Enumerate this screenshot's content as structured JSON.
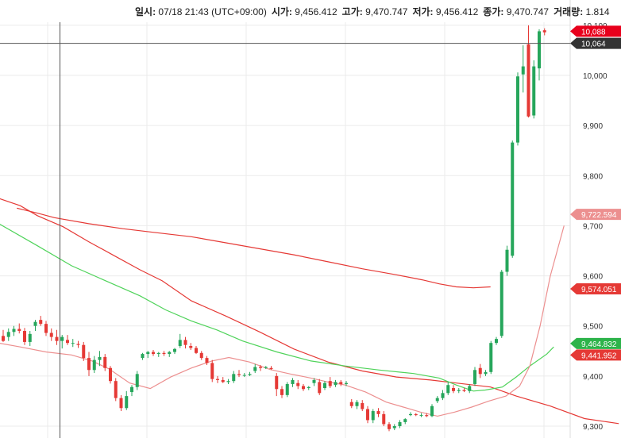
{
  "info": [
    {
      "label": "일시:",
      "value": "07/18 21:43 (UTC+09:00)"
    },
    {
      "label": "시가:",
      "value": "9,456.412"
    },
    {
      "label": "고가:",
      "value": "9,470.747"
    },
    {
      "label": "저가:",
      "value": "9,456.412"
    },
    {
      "label": "종가:",
      "value": "9,470.747"
    },
    {
      "label": "거래량:",
      "value": "1.814"
    }
  ],
  "colors": {
    "up": "#26a65b",
    "down": "#e53935",
    "ma_slow": "#e53935",
    "ma_mid": "#ec8f8f",
    "ma_fast": "#4fd35a",
    "grid": "#ebebeb",
    "crosshair": "#555555"
  },
  "chart_data": {
    "type": "candlestick",
    "ylim": [
      9290,
      10110
    ],
    "y_ticks": [
      "9,300",
      "9,400",
      "9,500",
      "9,600",
      "9,700",
      "9,800",
      "9,900",
      "10,000",
      "10,100"
    ],
    "candles": [
      {
        "o": 9480,
        "h": 9492,
        "l": 9468,
        "c": 9470
      },
      {
        "o": 9478,
        "h": 9495,
        "l": 9470,
        "c": 9488
      },
      {
        "o": 9488,
        "h": 9500,
        "l": 9480,
        "c": 9494
      },
      {
        "o": 9494,
        "h": 9505,
        "l": 9485,
        "c": 9490
      },
      {
        "o": 9490,
        "h": 9496,
        "l": 9462,
        "c": 9468
      },
      {
        "o": 9468,
        "h": 9490,
        "l": 9460,
        "c": 9484
      },
      {
        "o": 9500,
        "h": 9512,
        "l": 9490,
        "c": 9508
      },
      {
        "o": 9512,
        "h": 9520,
        "l": 9500,
        "c": 9504
      },
      {
        "o": 9504,
        "h": 9510,
        "l": 9480,
        "c": 9486
      },
      {
        "o": 9486,
        "h": 9495,
        "l": 9470,
        "c": 9478
      },
      {
        "o": 9478,
        "h": 9492,
        "l": 9462,
        "c": 9470
      },
      {
        "o": 9470,
        "h": 9482,
        "l": 9455,
        "c": 9478
      },
      {
        "o": 9472,
        "h": 9482,
        "l": 9462,
        "c": 9466
      },
      {
        "o": 9466,
        "h": 9474,
        "l": 9458,
        "c": 9466
      },
      {
        "o": 9464,
        "h": 9470,
        "l": 9456,
        "c": 9462
      },
      {
        "o": 9462,
        "h": 9468,
        "l": 9430,
        "c": 9436
      },
      {
        "o": 9436,
        "h": 9448,
        "l": 9400,
        "c": 9412
      },
      {
        "o": 9412,
        "h": 9440,
        "l": 9406,
        "c": 9432
      },
      {
        "o": 9432,
        "h": 9450,
        "l": 9420,
        "c": 9438
      },
      {
        "o": 9438,
        "h": 9444,
        "l": 9410,
        "c": 9416
      },
      {
        "o": 9416,
        "h": 9420,
        "l": 9385,
        "c": 9390
      },
      {
        "o": 9390,
        "h": 9396,
        "l": 9350,
        "c": 9356
      },
      {
        "o": 9356,
        "h": 9362,
        "l": 9330,
        "c": 9336
      },
      {
        "o": 9336,
        "h": 9370,
        "l": 9332,
        "c": 9360
      },
      {
        "o": 9368,
        "h": 9382,
        "l": 9360,
        "c": 9378
      },
      {
        "o": 9378,
        "h": 9410,
        "l": 9372,
        "c": 9404
      },
      {
        "o": 9436,
        "h": 9446,
        "l": 9432,
        "c": 9444
      },
      {
        "o": 9444,
        "h": 9450,
        "l": 9436,
        "c": 9448
      },
      {
        "o": 9448,
        "h": 9452,
        "l": 9440,
        "c": 9444
      },
      {
        "o": 9444,
        "h": 9448,
        "l": 9438,
        "c": 9446
      },
      {
        "o": 9446,
        "h": 9450,
        "l": 9440,
        "c": 9444
      },
      {
        "o": 9444,
        "h": 9450,
        "l": 9438,
        "c": 9448
      },
      {
        "o": 9448,
        "h": 9456,
        "l": 9444,
        "c": 9454
      },
      {
        "o": 9460,
        "h": 9484,
        "l": 9456,
        "c": 9472
      },
      {
        "o": 9472,
        "h": 9478,
        "l": 9455,
        "c": 9462
      },
      {
        "o": 9460,
        "h": 9466,
        "l": 9452,
        "c": 9456
      },
      {
        "o": 9456,
        "h": 9460,
        "l": 9444,
        "c": 9446
      },
      {
        "o": 9446,
        "h": 9450,
        "l": 9432,
        "c": 9436
      },
      {
        "o": 9436,
        "h": 9440,
        "l": 9422,
        "c": 9426
      },
      {
        "o": 9426,
        "h": 9432,
        "l": 9388,
        "c": 9394
      },
      {
        "o": 9394,
        "h": 9400,
        "l": 9386,
        "c": 9392
      },
      {
        "o": 9392,
        "h": 9398,
        "l": 9386,
        "c": 9388
      },
      {
        "o": 9388,
        "h": 9394,
        "l": 9384,
        "c": 9390
      },
      {
        "o": 9390,
        "h": 9410,
        "l": 9386,
        "c": 9404
      },
      {
        "o": 9404,
        "h": 9412,
        "l": 9398,
        "c": 9402
      },
      {
        "o": 9402,
        "h": 9406,
        "l": 9398,
        "c": 9402
      },
      {
        "o": 9402,
        "h": 9408,
        "l": 9400,
        "c": 9404
      },
      {
        "o": 9410,
        "h": 9424,
        "l": 9406,
        "c": 9418
      },
      {
        "o": 9418,
        "h": 9422,
        "l": 9410,
        "c": 9416
      },
      {
        "o": 9416,
        "h": 9420,
        "l": 9414,
        "c": 9418
      },
      {
        "o": 9416,
        "h": 9420,
        "l": 9412,
        "c": 9414
      },
      {
        "o": 9400,
        "h": 9406,
        "l": 9360,
        "c": 9374
      },
      {
        "o": 9374,
        "h": 9380,
        "l": 9356,
        "c": 9362
      },
      {
        "o": 9362,
        "h": 9388,
        "l": 9358,
        "c": 9384
      },
      {
        "o": 9384,
        "h": 9396,
        "l": 9378,
        "c": 9392
      },
      {
        "o": 9386,
        "h": 9392,
        "l": 9374,
        "c": 9380
      },
      {
        "o": 9380,
        "h": 9384,
        "l": 9370,
        "c": 9374
      },
      {
        "o": 9376,
        "h": 9380,
        "l": 9372,
        "c": 9378
      },
      {
        "o": 9386,
        "h": 9396,
        "l": 9380,
        "c": 9392
      },
      {
        "o": 9388,
        "h": 9394,
        "l": 9362,
        "c": 9366
      },
      {
        "o": 9376,
        "h": 9390,
        "l": 9372,
        "c": 9386
      },
      {
        "o": 9390,
        "h": 9398,
        "l": 9376,
        "c": 9380
      },
      {
        "o": 9382,
        "h": 9392,
        "l": 9378,
        "c": 9388
      },
      {
        "o": 9388,
        "h": 9392,
        "l": 9380,
        "c": 9384
      },
      {
        "o": 9384,
        "h": 9390,
        "l": 9380,
        "c": 9386
      },
      {
        "o": 9348,
        "h": 9354,
        "l": 9336,
        "c": 9340
      },
      {
        "o": 9340,
        "h": 9352,
        "l": 9334,
        "c": 9348
      },
      {
        "o": 9346,
        "h": 9352,
        "l": 9330,
        "c": 9334
      },
      {
        "o": 9334,
        "h": 9340,
        "l": 9306,
        "c": 9312
      },
      {
        "o": 9312,
        "h": 9334,
        "l": 9306,
        "c": 9330
      },
      {
        "o": 9330,
        "h": 9336,
        "l": 9318,
        "c": 9324
      },
      {
        "o": 9324,
        "h": 9330,
        "l": 9300,
        "c": 9304
      },
      {
        "o": 9304,
        "h": 9308,
        "l": 9290,
        "c": 9294
      },
      {
        "o": 9296,
        "h": 9304,
        "l": 9292,
        "c": 9300
      },
      {
        "o": 9300,
        "h": 9312,
        "l": 9296,
        "c": 9308
      },
      {
        "o": 9308,
        "h": 9316,
        "l": 9304,
        "c": 9314
      },
      {
        "o": 9322,
        "h": 9328,
        "l": 9320,
        "c": 9324
      },
      {
        "o": 9324,
        "h": 9326,
        "l": 9320,
        "c": 9322
      },
      {
        "o": 9322,
        "h": 9326,
        "l": 9318,
        "c": 9322
      },
      {
        "o": 9322,
        "h": 9326,
        "l": 9318,
        "c": 9320
      },
      {
        "o": 9320,
        "h": 9344,
        "l": 9318,
        "c": 9340
      },
      {
        "o": 9350,
        "h": 9360,
        "l": 9346,
        "c": 9356
      },
      {
        "o": 9356,
        "h": 9372,
        "l": 9352,
        "c": 9366
      },
      {
        "o": 9366,
        "h": 9388,
        "l": 9362,
        "c": 9382
      },
      {
        "o": 9376,
        "h": 9382,
        "l": 9366,
        "c": 9370
      },
      {
        "o": 9370,
        "h": 9376,
        "l": 9366,
        "c": 9372
      },
      {
        "o": 9372,
        "h": 9376,
        "l": 9368,
        "c": 9370
      },
      {
        "o": 9370,
        "h": 9384,
        "l": 9366,
        "c": 9380
      },
      {
        "o": 9384,
        "h": 9418,
        "l": 9380,
        "c": 9412
      },
      {
        "o": 9416,
        "h": 9424,
        "l": 9396,
        "c": 9404
      },
      {
        "o": 9404,
        "h": 9412,
        "l": 9400,
        "c": 9408
      },
      {
        "o": 9408,
        "h": 9470,
        "l": 9404,
        "c": 9466
      },
      {
        "o": 9466,
        "h": 9478,
        "l": 9462,
        "c": 9474
      },
      {
        "o": 9480,
        "h": 9612,
        "l": 9476,
        "c": 9608
      },
      {
        "o": 9608,
        "h": 9660,
        "l": 9600,
        "c": 9652
      },
      {
        "o": 9640,
        "h": 9870,
        "l": 9636,
        "c": 9866
      },
      {
        "o": 9866,
        "h": 10006,
        "l": 9860,
        "c": 9998
      },
      {
        "o": 10002,
        "h": 10060,
        "l": 9966,
        "c": 10018
      },
      {
        "o": 10062,
        "h": 10100,
        "l": 9916,
        "c": 9918
      },
      {
        "o": 9920,
        "h": 10030,
        "l": 9914,
        "c": 10018
      },
      {
        "o": 10014,
        "h": 10092,
        "l": 9990,
        "c": 10088
      },
      {
        "o": 10090,
        "h": 10094,
        "l": 10080,
        "c": 10086
      }
    ],
    "series": [
      {
        "points": [
          [
            -3,
            9755
          ],
          [
            10,
            9740
          ],
          [
            20,
            9720
          ],
          [
            35,
            9698
          ],
          [
            50,
            9668
          ],
          [
            65,
            9640
          ],
          [
            80,
            9612
          ],
          [
            93,
            9590
          ],
          [
            110,
            9550
          ],
          [
            130,
            9520
          ],
          [
            150,
            9488
          ],
          [
            170,
            9454
          ],
          [
            190,
            9428
          ],
          [
            210,
            9410
          ],
          [
            230,
            9398
          ],
          [
            250,
            9392
          ],
          [
            265,
            9386
          ],
          [
            285,
            9378
          ],
          [
            300,
            9360
          ],
          [
            320,
            9340
          ],
          [
            340,
            9315
          ],
          [
            360,
            9305
          ]
        ]
      },
      {
        "points": [
          [
            8,
            9735
          ],
          [
            20,
            9725
          ],
          [
            30,
            9716
          ],
          [
            50,
            9704
          ],
          [
            70,
            9694
          ],
          [
            90,
            9686
          ],
          [
            110,
            9678
          ],
          [
            130,
            9666
          ],
          [
            150,
            9654
          ],
          [
            170,
            9642
          ],
          [
            190,
            9628
          ],
          [
            210,
            9614
          ],
          [
            230,
            9602
          ],
          [
            245,
            9592
          ],
          [
            255,
            9584
          ],
          [
            265,
            9578
          ],
          [
            275,
            9576
          ],
          [
            285,
            9578
          ]
        ]
      },
      {
        "points": [
          [
            -3,
            9705
          ],
          [
            20,
            9660
          ],
          [
            40,
            9620
          ],
          [
            60,
            9590
          ],
          [
            80,
            9560
          ],
          [
            95,
            9532
          ],
          [
            110,
            9510
          ],
          [
            125,
            9492
          ],
          [
            140,
            9470
          ],
          [
            160,
            9448
          ],
          [
            180,
            9430
          ],
          [
            200,
            9420
          ],
          [
            220,
            9412
          ],
          [
            240,
            9405
          ],
          [
            255,
            9396
          ],
          [
            265,
            9382
          ],
          [
            275,
            9370
          ],
          [
            282,
            9372
          ],
          [
            292,
            9378
          ],
          [
            300,
            9398
          ],
          [
            308,
            9420
          ],
          [
            318,
            9444
          ],
          [
            322,
            9458
          ]
        ]
      },
      {
        "points": [
          [
            -3,
            9466
          ],
          [
            10,
            9458
          ],
          [
            25,
            9448
          ],
          [
            40,
            9442
          ],
          [
            52,
            9430
          ],
          [
            62,
            9414
          ],
          [
            74,
            9386
          ],
          [
            86,
            9375
          ],
          [
            98,
            9398
          ],
          [
            110,
            9416
          ],
          [
            122,
            9430
          ],
          [
            132,
            9437
          ],
          [
            144,
            9428
          ],
          [
            156,
            9413
          ],
          [
            168,
            9404
          ],
          [
            180,
            9396
          ],
          [
            190,
            9388
          ],
          [
            200,
            9382
          ],
          [
            212,
            9368
          ],
          [
            224,
            9348
          ],
          [
            234,
            9338
          ],
          [
            244,
            9328
          ],
          [
            254,
            9320
          ],
          [
            264,
            9328
          ],
          [
            274,
            9338
          ],
          [
            284,
            9350
          ],
          [
            294,
            9360
          ],
          [
            302,
            9380
          ],
          [
            308,
            9420
          ],
          [
            314,
            9500
          ],
          [
            320,
            9600
          ],
          [
            328,
            9700
          ]
        ]
      }
    ],
    "price_tags": [
      {
        "value": "10,088",
        "price": 10088,
        "color": "#e8001c"
      },
      {
        "value": "10,064",
        "price": 10064,
        "color": "#333333"
      },
      {
        "value": "9,722.594",
        "price": 9722.594,
        "color": "#ec8f8f"
      },
      {
        "value": "9,574.051",
        "price": 9574.051,
        "color": "#e53935"
      },
      {
        "value": "9,464.832",
        "price": 9464.832,
        "color": "#2db34a"
      },
      {
        "value": "9,441.952",
        "price": 9441.952,
        "color": "#e53935"
      }
    ],
    "crosshair": {
      "price": 10064
    }
  }
}
